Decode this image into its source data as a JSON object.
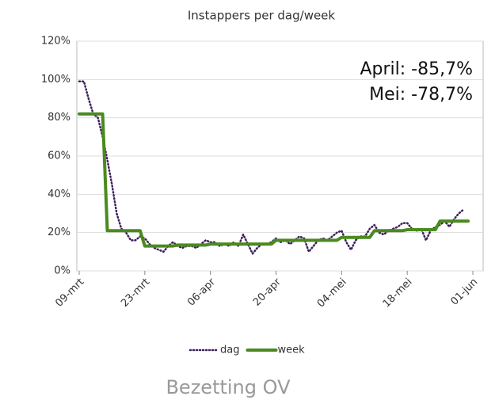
{
  "chart_data": {
    "type": "line",
    "title": "Instappers per dag/week",
    "annotations": [
      "April: -85,7%",
      "Mei: -78,7%"
    ],
    "caption": "Bezetting OV",
    "categories": [
      "09-mrt",
      null,
      null,
      null,
      null,
      null,
      null,
      null,
      null,
      null,
      null,
      null,
      null,
      null,
      "23-mrt",
      null,
      null,
      null,
      null,
      null,
      null,
      null,
      null,
      null,
      null,
      null,
      null,
      null,
      "06-apr",
      null,
      null,
      null,
      null,
      null,
      null,
      null,
      null,
      null,
      null,
      null,
      null,
      null,
      "20-apr",
      null,
      null,
      null,
      null,
      null,
      null,
      null,
      null,
      null,
      null,
      null,
      null,
      null,
      "04-mei",
      null,
      null,
      null,
      null,
      null,
      null,
      null,
      null,
      null,
      null,
      null,
      null,
      null,
      "18-mei",
      null,
      null,
      null,
      null,
      null,
      null,
      null,
      null,
      null,
      null,
      null,
      null,
      null,
      "01-jun"
    ],
    "series": [
      {
        "name": "dag",
        "color": "#3d1f5c",
        "style": "dotted",
        "values": [
          99,
          99,
          90,
          82,
          80,
          70,
          58,
          45,
          30,
          22,
          20,
          16,
          16,
          18,
          17,
          14,
          12,
          11,
          10,
          13,
          15,
          13,
          12,
          13,
          13,
          12,
          14,
          16,
          15,
          15,
          13,
          14,
          13,
          15,
          13,
          19,
          14,
          9,
          12,
          14,
          14,
          15,
          17,
          15,
          16,
          14,
          16,
          18,
          17,
          10,
          13,
          16,
          17,
          16,
          18,
          20,
          21,
          15,
          11,
          16,
          18,
          18,
          22,
          24,
          20,
          19,
          21,
          22,
          23,
          25,
          25,
          22,
          21,
          22,
          16,
          21,
          23,
          24,
          26,
          23,
          27,
          30,
          32,
          null,
          null
        ]
      },
      {
        "name": "week",
        "color": "#4a8a1f",
        "style": "solid",
        "values": [
          82,
          82,
          82,
          82,
          82,
          82,
          21,
          21,
          21,
          21,
          21,
          21,
          21,
          21,
          13,
          13,
          13,
          13,
          13,
          13,
          13,
          13.5,
          13.5,
          13.5,
          13.5,
          13.5,
          13.5,
          13.5,
          14,
          14,
          14,
          14,
          14,
          14,
          14,
          14,
          14,
          14,
          14,
          14,
          14,
          14,
          16,
          16,
          16,
          16,
          16,
          16,
          16,
          16,
          16,
          16,
          16,
          16,
          16,
          16,
          17.5,
          17.5,
          17.5,
          17.5,
          17.5,
          17.5,
          17.5,
          21,
          21,
          21,
          21,
          21,
          21,
          21,
          21.5,
          21.5,
          21.5,
          21.5,
          21.5,
          21.5,
          21.5,
          26,
          26,
          26,
          26,
          26,
          26,
          26,
          null
        ]
      }
    ],
    "ylim": [
      0,
      120
    ],
    "yticks": [
      {
        "value": 0,
        "label": "0%"
      },
      {
        "value": 20,
        "label": "20%"
      },
      {
        "value": 40,
        "label": "40%"
      },
      {
        "value": 60,
        "label": "60%"
      },
      {
        "value": 80,
        "label": "80%"
      },
      {
        "value": 100,
        "label": "100%"
      },
      {
        "value": 120,
        "label": "120%"
      }
    ],
    "grid": true,
    "legend": "bottom"
  }
}
